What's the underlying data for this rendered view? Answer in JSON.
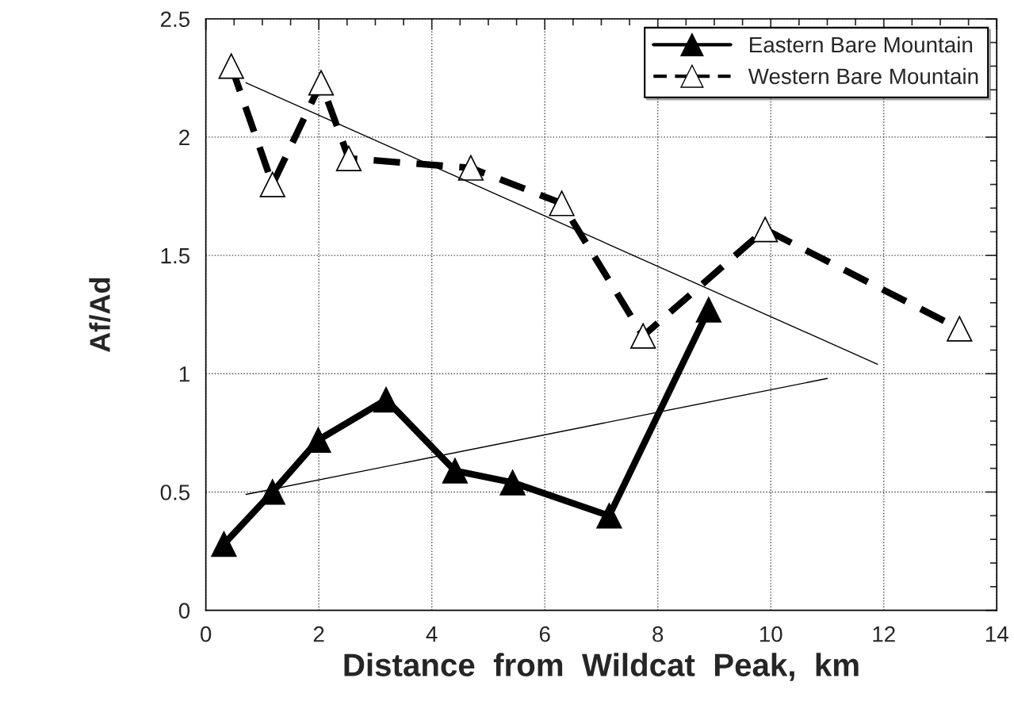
{
  "chart_data": {
    "type": "line",
    "xlabel": "Distance  from  Wildcat  Peak,  km",
    "ylabel": "Af/Ad",
    "xlim": [
      0,
      14
    ],
    "xticks": [
      0,
      2,
      4,
      6,
      8,
      10,
      12,
      14
    ],
    "ylim": [
      0,
      2.5
    ],
    "yticks": [
      0,
      0.5,
      1,
      1.5,
      2,
      2.5
    ],
    "grid": true,
    "legend": "top right",
    "series": [
      {
        "name": "Eastern Bare Mountain",
        "color": "#000000",
        "marker": "triangle",
        "line_style": "solid",
        "x": [
          0.32,
          1.18,
          1.99,
          3.19,
          4.41,
          5.43,
          7.14,
          8.9
        ],
        "values": [
          0.28,
          0.5,
          0.72,
          0.89,
          0.59,
          0.54,
          0.4,
          1.27
        ]
      },
      {
        "name": "Western Bare Mountain",
        "color": "#000000",
        "marker": "triangle",
        "line_style": "dashed",
        "x": [
          0.45,
          1.18,
          2.04,
          2.53,
          4.69,
          6.3,
          7.74,
          9.9,
          13.34
        ],
        "values": [
          2.3,
          1.8,
          2.23,
          1.91,
          1.87,
          1.72,
          1.16,
          1.61,
          1.19
        ]
      },
      {
        "color": "#000000",
        "marker": "none",
        "line_style": "solid",
        "x": [
          0.71,
          11.89
        ],
        "values": [
          2.23,
          1.04
        ]
      },
      {
        "color": "#000000",
        "marker": "none",
        "line_style": "solid",
        "x": [
          0.71,
          11.0
        ],
        "values": [
          0.49,
          0.98
        ]
      }
    ]
  }
}
